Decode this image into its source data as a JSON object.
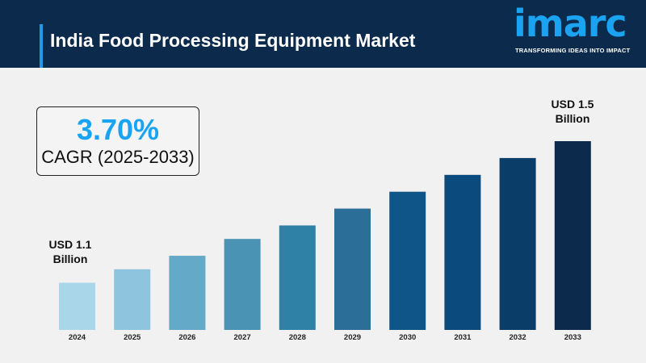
{
  "header": {
    "title": "India Food Processing Equipment Market"
  },
  "logo": {
    "word": "imarc",
    "tagline": "TRANSFORMING IDEAS INTO IMPACT"
  },
  "cagr": {
    "value": "3.70%",
    "label": "CAGR (2025-2033)"
  },
  "annotations": {
    "start": [
      "USD 1.1",
      "Billion"
    ],
    "end": [
      "USD 1.5",
      "Billion"
    ]
  },
  "chart_data": {
    "type": "bar",
    "title": "",
    "xlabel": "",
    "ylabel": "",
    "categories": [
      "2024",
      "2025",
      "2026",
      "2027",
      "2028",
      "2029",
      "2030",
      "2031",
      "2032",
      "2033"
    ],
    "values": [
      1.1,
      1.14,
      1.18,
      1.23,
      1.27,
      1.32,
      1.37,
      1.42,
      1.47,
      1.52
    ],
    "unit": "USD Billion",
    "ylim": [
      0.96,
      1.52
    ],
    "grid": false,
    "colors": [
      "#a9d6e8",
      "#8ec4de",
      "#65a9c9",
      "#4b93b4",
      "#2f81a6",
      "#2b6e97",
      "#0f5587",
      "#0b4a7c",
      "#0a3d68",
      "#0c2a4b"
    ]
  }
}
